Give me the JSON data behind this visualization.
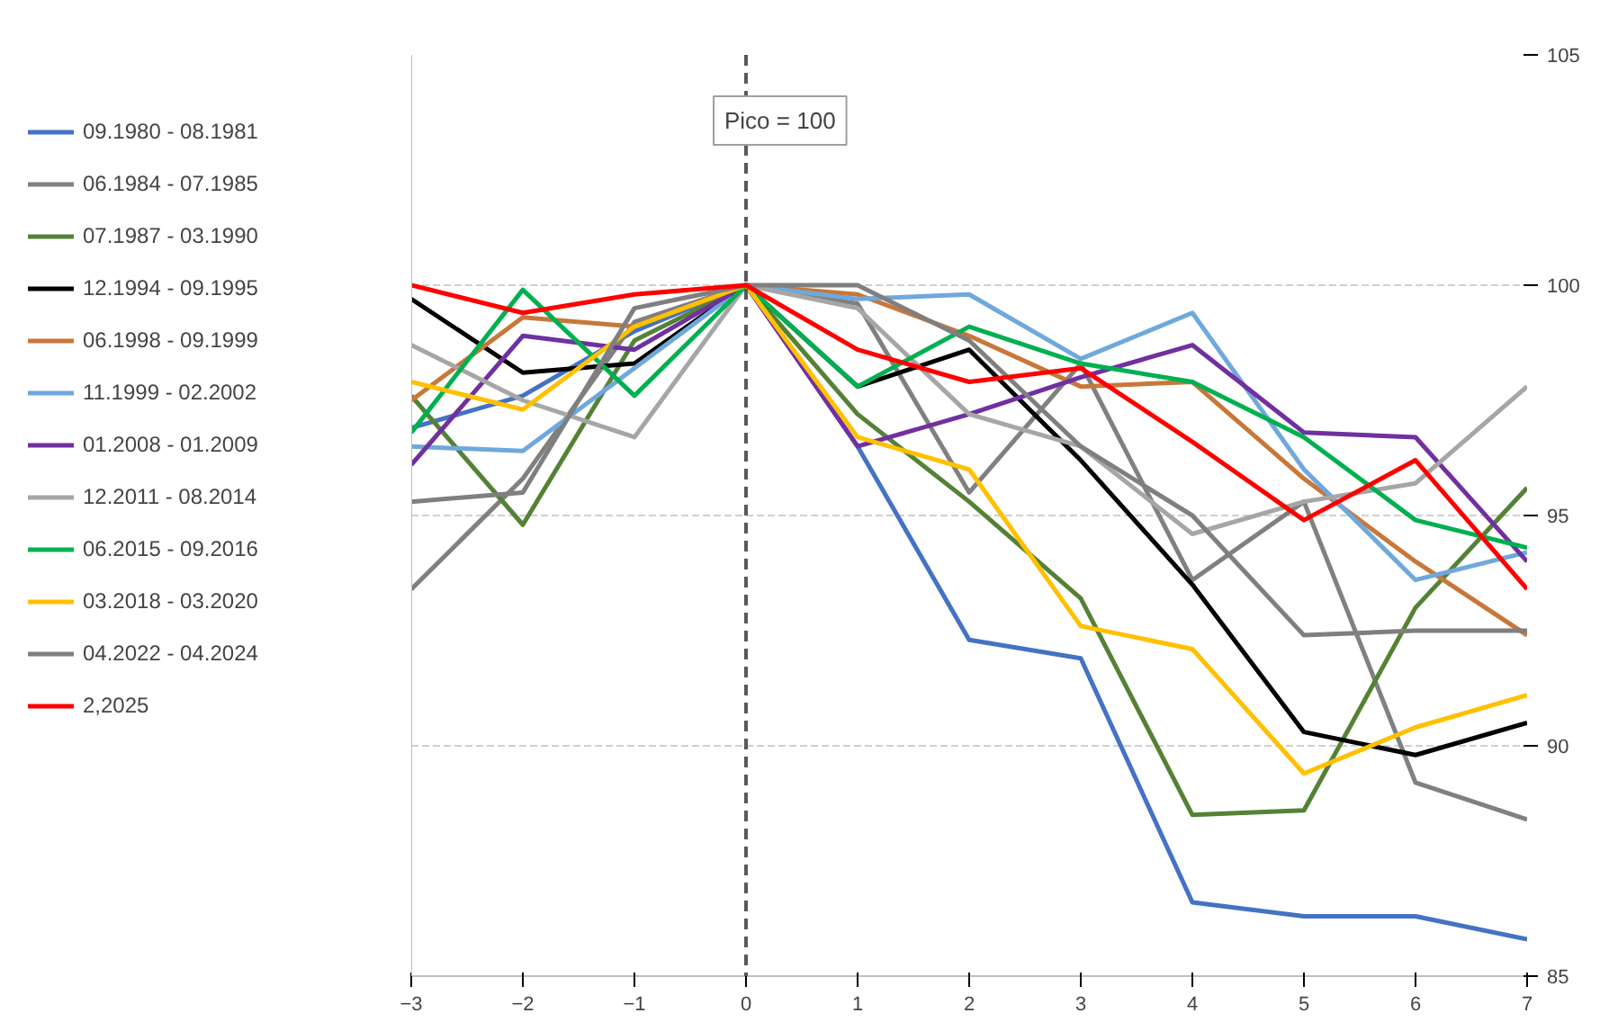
{
  "chart_data": {
    "type": "line",
    "x": [
      -3,
      -2,
      -1,
      0,
      1,
      2,
      3,
      4,
      5,
      6,
      7
    ],
    "series": [
      {
        "name": "09.1980 - 08.1981",
        "color": "#4472c4",
        "values": [
          96.9,
          97.6,
          99.0,
          100,
          96.5,
          92.3,
          91.9,
          86.6,
          86.3,
          86.3,
          85.8
        ]
      },
      {
        "name": "06.1984 - 07.1985",
        "color": "#808080",
        "values": [
          93.4,
          95.8,
          99.2,
          100,
          99.6,
          95.5,
          98.3,
          93.6,
          95.3,
          89.2,
          88.4
        ]
      },
      {
        "name": "07.1987 - 03.1990",
        "color": "#548235",
        "values": [
          97.6,
          94.8,
          98.8,
          100,
          97.2,
          95.3,
          93.2,
          88.5,
          88.6,
          93.0,
          95.6
        ]
      },
      {
        "name": "12.1994 - 09.1995",
        "color": "#000000",
        "values": [
          99.7,
          98.1,
          98.3,
          100,
          97.8,
          98.6,
          96.2,
          93.5,
          90.3,
          89.8,
          90.5
        ]
      },
      {
        "name": "06.1998 - 09.1999",
        "color": "#c8773a",
        "values": [
          97.5,
          99.3,
          99.1,
          100,
          99.8,
          98.9,
          97.8,
          97.9,
          95.8,
          94.0,
          92.4
        ]
      },
      {
        "name": "11.1999 - 02.2002",
        "color": "#6fa8dc",
        "values": [
          96.5,
          96.4,
          98.2,
          100,
          99.7,
          99.8,
          98.4,
          99.4,
          96.0,
          93.6,
          94.2
        ]
      },
      {
        "name": "01.2008 - 01.2009",
        "color": "#7030a0",
        "values": [
          96.1,
          98.9,
          98.6,
          100,
          96.5,
          97.2,
          98.0,
          98.7,
          96.8,
          96.7,
          94.0
        ]
      },
      {
        "name": "12.2011 - 08.2014",
        "color": "#a6a6a6",
        "values": [
          98.7,
          97.5,
          96.7,
          100,
          99.5,
          97.2,
          96.5,
          94.6,
          95.3,
          95.7,
          97.8
        ]
      },
      {
        "name": "06.2015 - 09.2016",
        "color": "#00b050",
        "values": [
          96.8,
          99.9,
          97.6,
          100,
          97.8,
          99.1,
          98.3,
          97.9,
          96.7,
          94.9,
          94.3
        ]
      },
      {
        "name": "03.2018 - 03.2020",
        "color": "#ffc000",
        "values": [
          97.9,
          97.3,
          99.1,
          100,
          96.7,
          96.0,
          92.6,
          92.1,
          89.4,
          90.4,
          91.1
        ]
      },
      {
        "name": "04.2022 - 04.2024",
        "color": "#7f7f7f",
        "values": [
          95.3,
          95.5,
          99.5,
          100,
          100,
          98.8,
          96.5,
          95.0,
          92.4,
          92.5,
          92.5
        ]
      },
      {
        "name": "2,2025",
        "color": "#ff0000",
        "values": [
          100,
          99.4,
          99.8,
          100,
          98.6,
          97.9,
          98.2,
          96.6,
          94.9,
          96.2,
          93.4
        ]
      }
    ],
    "xlim": [
      -3,
      7
    ],
    "xticks": [
      -3,
      -2,
      -1,
      0,
      1,
      2,
      3,
      4,
      5,
      6,
      7
    ],
    "ylim": [
      85,
      105
    ],
    "yticks": [
      85,
      90,
      95,
      100,
      105
    ],
    "grid": "y",
    "legend": "left",
    "line_style": "solid",
    "marker": "none",
    "ref_lines": [
      {
        "axis": "x",
        "value": 0,
        "color": "#595959",
        "line_style": "dashed"
      }
    ],
    "annotations": [
      "Pico = 100"
    ]
  }
}
